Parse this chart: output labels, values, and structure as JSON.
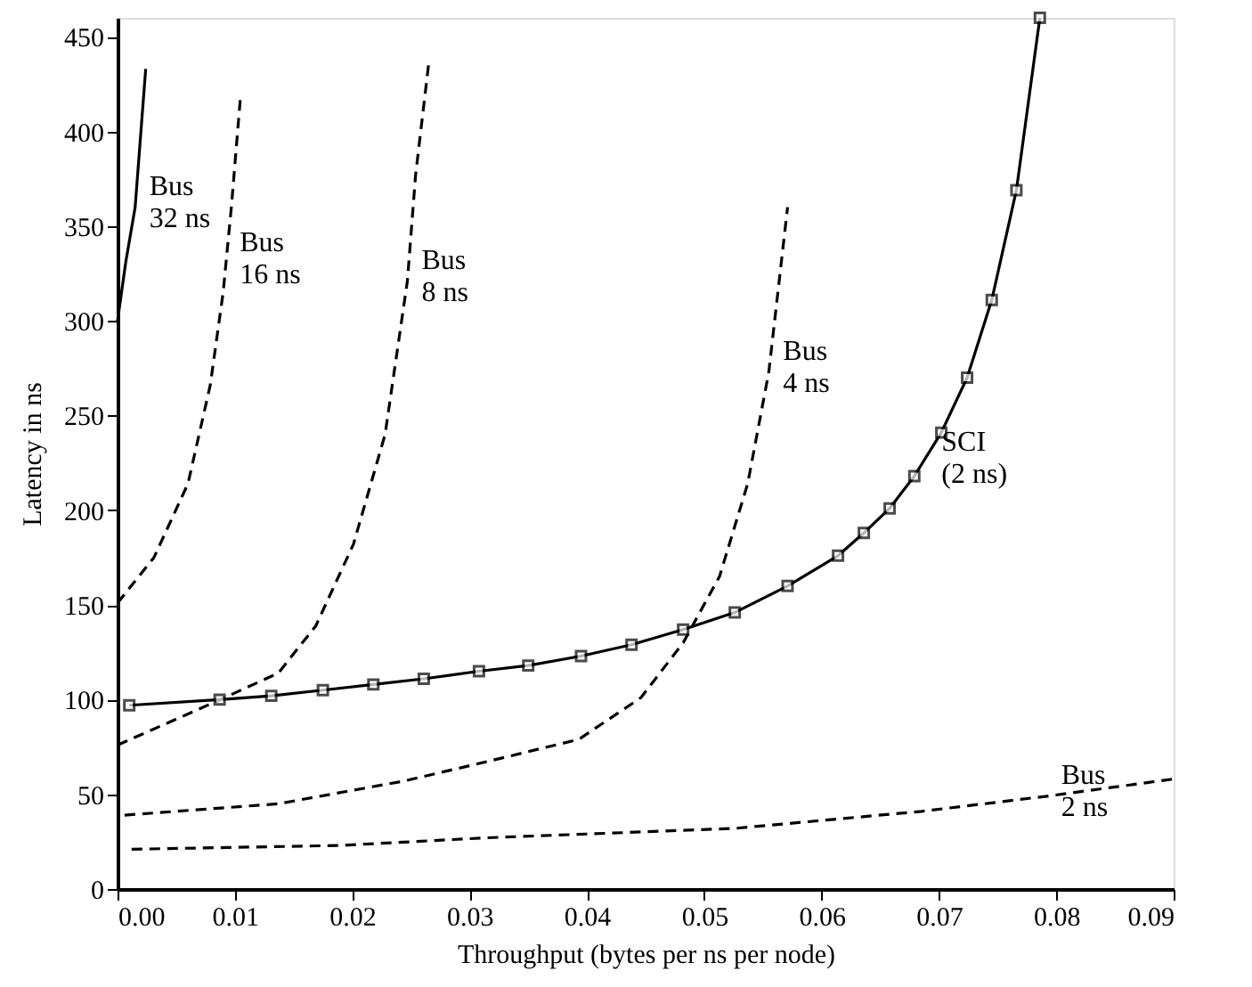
{
  "chart_data": {
    "type": "line",
    "xlabel": "Throughput (bytes per ns per node)",
    "ylabel": "Latency in ns",
    "xlim": [
      0,
      0.09
    ],
    "xticks": [
      {
        "value": 0,
        "label": "0.00"
      },
      0.01,
      0.02,
      0.03,
      0.04,
      0.05,
      0.06,
      0.07,
      0.08,
      0.09
    ],
    "ylim": [
      0,
      460
    ],
    "yticks": [
      0,
      50,
      100,
      150,
      200,
      250,
      300,
      350,
      400,
      450
    ],
    "grid": false,
    "series": [
      {
        "color": "#000000",
        "line_style": "solid",
        "marker": "none",
        "x": [
          0,
          0.0007,
          0.0015,
          0.0024
        ],
        "values": [
          300,
          331,
          360,
          433
        ]
      },
      {
        "color": "#000000",
        "line_style": "dashed",
        "marker": "none",
        "x": [
          0,
          0.0031,
          0.006,
          0.0079,
          0.009,
          0.0097,
          0.0105
        ],
        "values": [
          151,
          175,
          214,
          266,
          315,
          360,
          420
        ]
      },
      {
        "color": "#000000",
        "line_style": "dashed",
        "marker": "none",
        "x": [
          0,
          0.0084,
          0.0137,
          0.0169,
          0.0201,
          0.0228,
          0.0247,
          0.0254,
          0.0265
        ],
        "values": [
          76,
          99,
          114,
          139,
          182,
          240,
          321,
          377,
          435
        ]
      },
      {
        "color": "#000000",
        "line_style": "dashed",
        "marker": "none",
        "x": [
          0.0006,
          0.0137,
          0.0244,
          0.0313,
          0.0393,
          0.0446,
          0.0482,
          0.0513,
          0.0537,
          0.0555,
          0.0571
        ],
        "values": [
          39,
          45,
          57,
          67,
          79,
          101,
          130,
          165,
          214,
          273,
          360
        ]
      },
      {
        "color": "#000000",
        "line_style": "dashed",
        "marker": "none",
        "x": [
          0.0012,
          0.019,
          0.0313,
          0.0526,
          0.0685,
          0.0792,
          0.0899
        ],
        "values": [
          21,
          23,
          27,
          32,
          41,
          49,
          58
        ]
      },
      {
        "color": "#000000",
        "line_style": "solid",
        "marker": "square",
        "x": [
          0.001,
          0.0087,
          0.0131,
          0.0175,
          0.0218,
          0.0261,
          0.0308,
          0.035,
          0.0395,
          0.0438,
          0.0482,
          0.0526,
          0.0571,
          0.0614,
          0.0636,
          0.0658,
          0.0679,
          0.0702,
          0.0724,
          0.0745,
          0.0766,
          0.0786
        ],
        "values": [
          97,
          100,
          102,
          105,
          108,
          111,
          115,
          118,
          123,
          129,
          137,
          146,
          160,
          176,
          188,
          201,
          218,
          241,
          270,
          311,
          369,
          460
        ]
      }
    ],
    "annotations": [
      {
        "text": "Bus\n32 ns",
        "x": 0.0015,
        "y": 360
      },
      {
        "text": "Bus\n16 ns",
        "x": 0.0092,
        "y": 330
      },
      {
        "text": "Bus\n8 ns",
        "x": 0.0247,
        "y": 321
      },
      {
        "text": "Bus\n4 ns",
        "x": 0.0555,
        "y": 273
      },
      {
        "text": "SCI\n(2 ns)",
        "x": 0.069,
        "y": 225
      },
      {
        "text": "Bus\n2 ns",
        "x": 0.0792,
        "y": 49
      }
    ]
  }
}
